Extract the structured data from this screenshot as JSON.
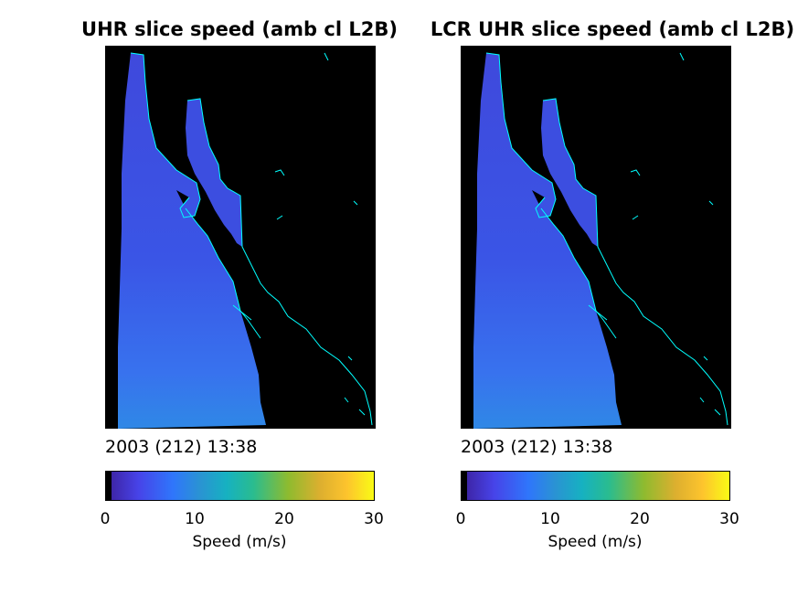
{
  "panels": [
    {
      "title": "UHR slice speed (amb cl L2B)",
      "timestamp": "2003 (212) 13:38",
      "colorbar": {
        "label": "Speed (m/s)",
        "ticks": [
          "0",
          "10",
          "20",
          "30"
        ],
        "min": 0,
        "max": 30
      }
    },
    {
      "title": "LCR UHR slice speed (amb cl L2B)",
      "timestamp": "2003 (212) 13:38",
      "colorbar": {
        "label": "Speed (m/s)",
        "ticks": [
          "0",
          "10",
          "20",
          "30"
        ],
        "min": 0,
        "max": 30
      }
    }
  ],
  "colors": {
    "coastline": "#00ffff",
    "land_background": "#000000",
    "colormap": [
      "#3e26a8",
      "#4743e8",
      "#2f76fb",
      "#2a93d3",
      "#16b1c1",
      "#2abc8f",
      "#8ebb2f",
      "#ddaf2f",
      "#fdc42d",
      "#f9fb15"
    ]
  }
}
